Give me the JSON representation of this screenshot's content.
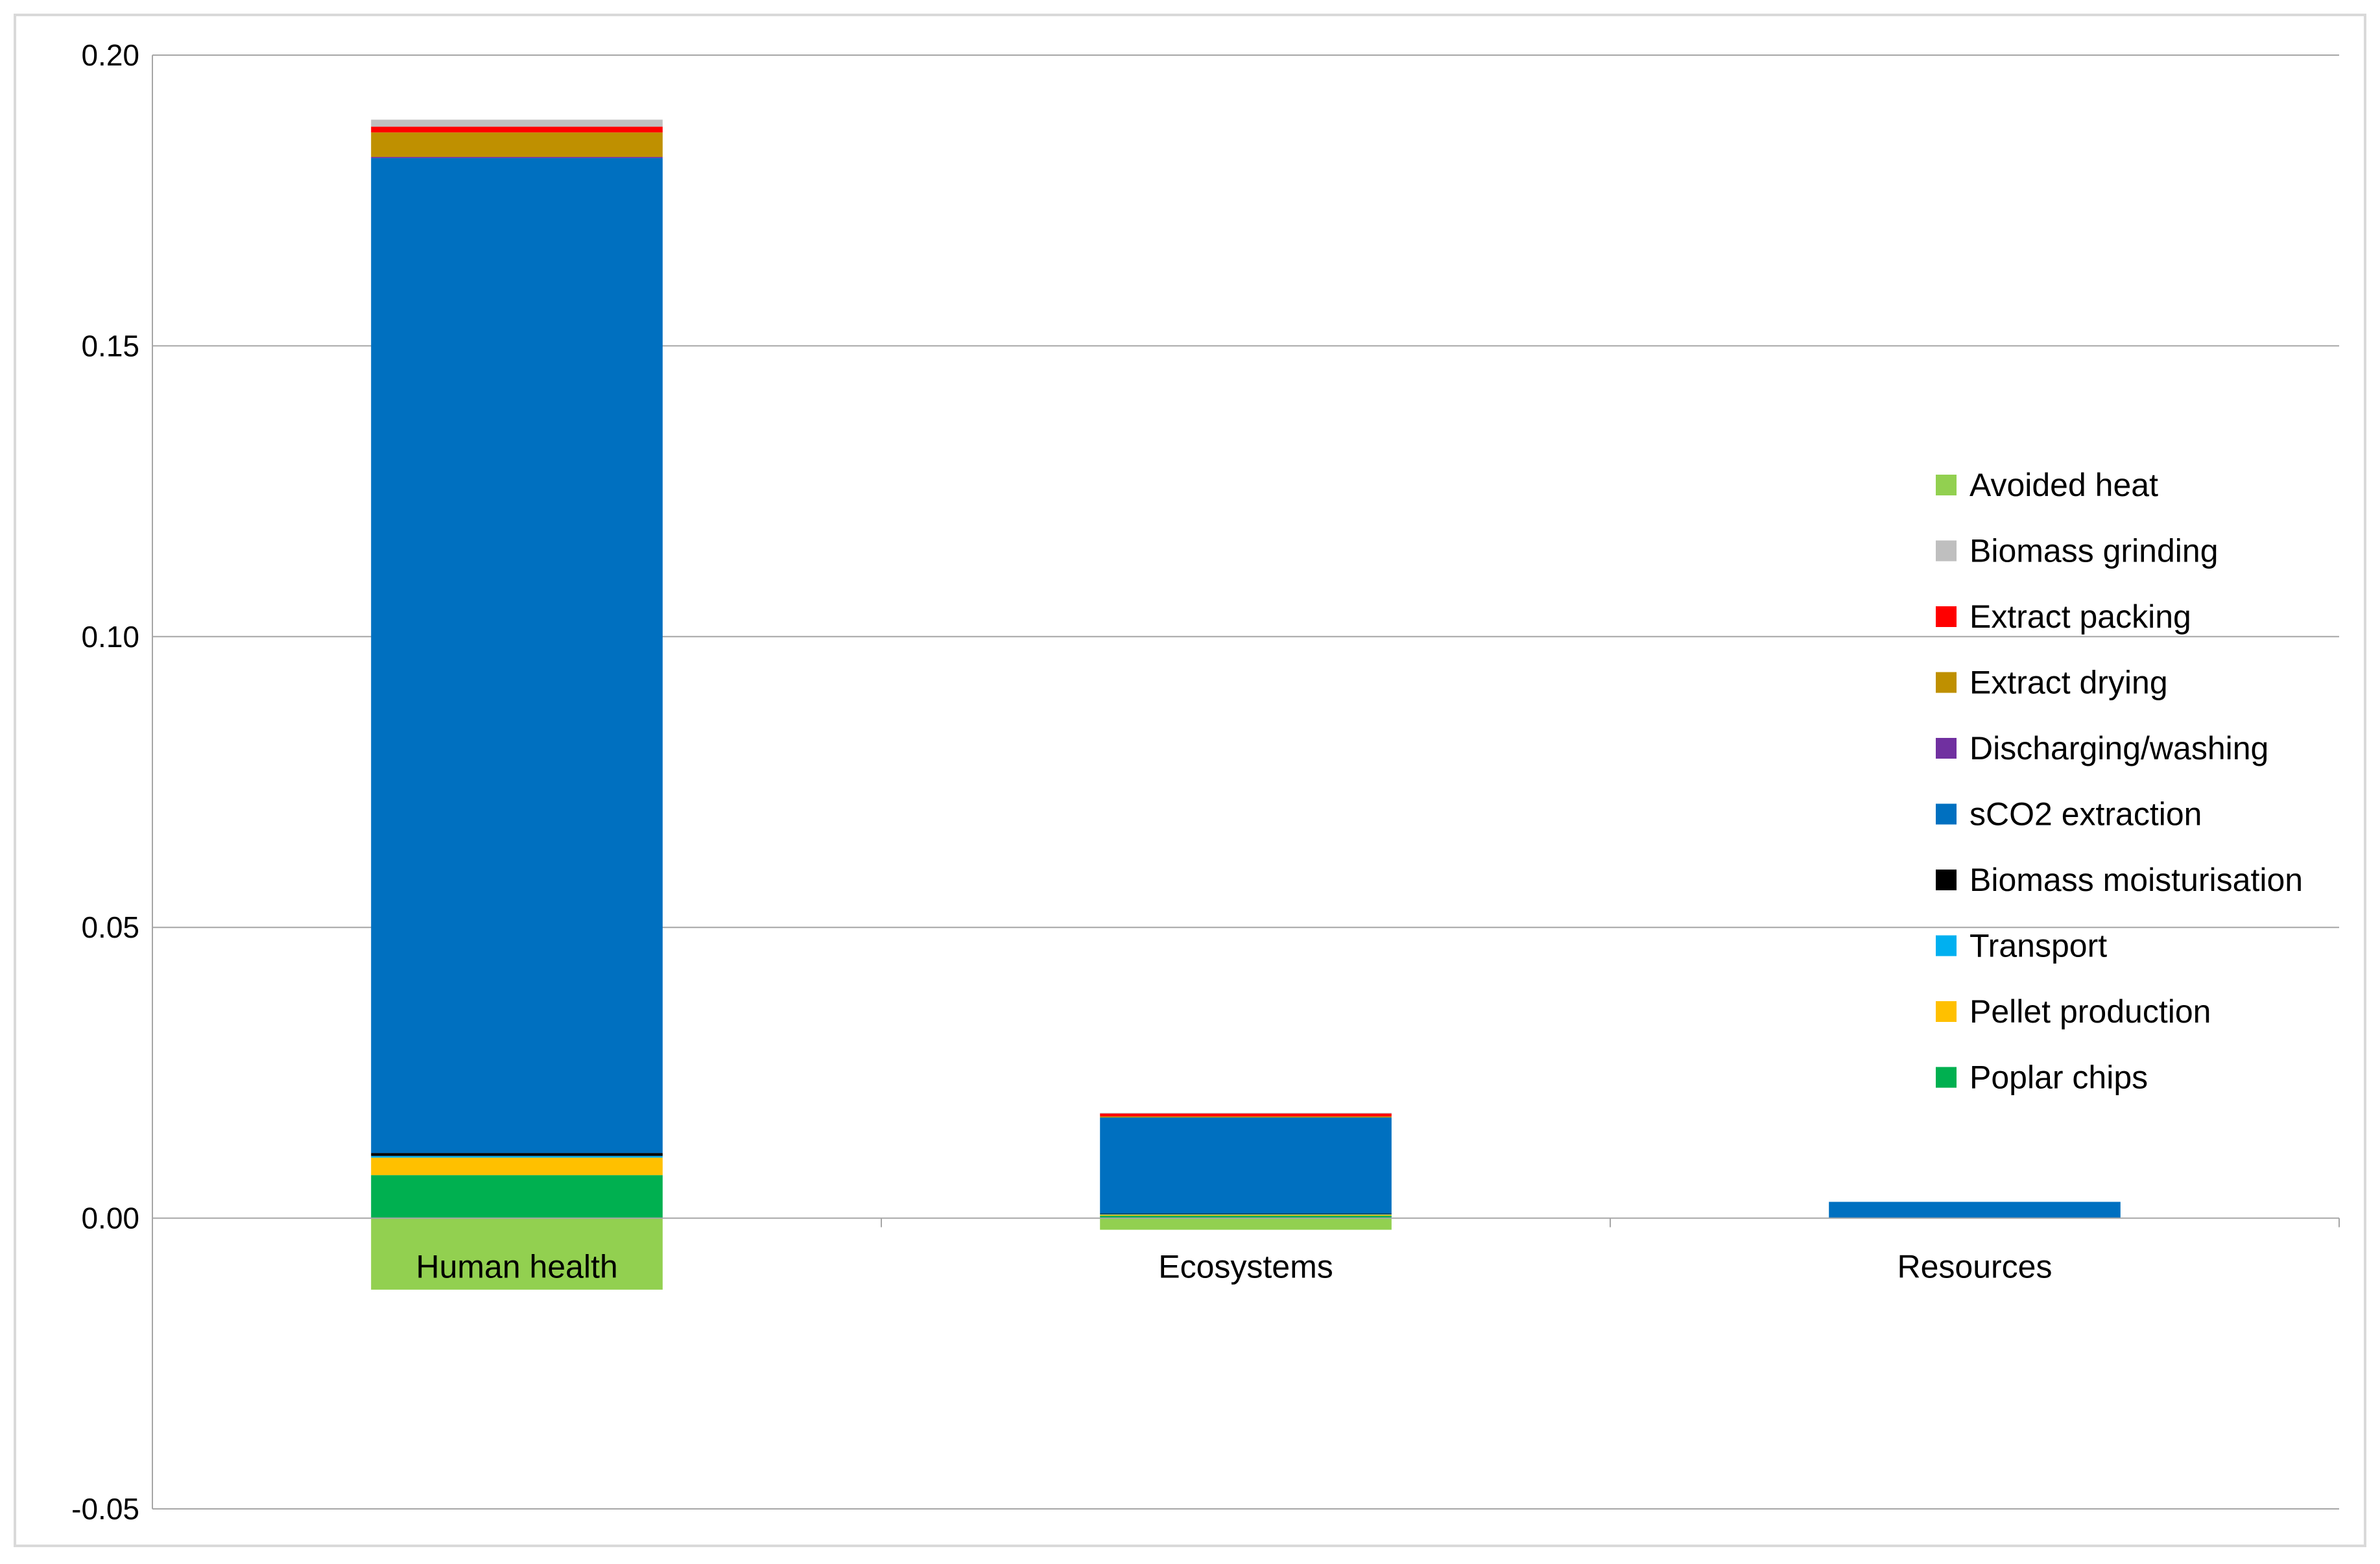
{
  "chart_data": {
    "type": "bar",
    "stacked": true,
    "categories": [
      "Human health",
      "Ecosystems",
      "Resources"
    ],
    "ylim": [
      -0.05,
      0.2
    ],
    "yticks": [
      "0.20",
      "0.15",
      "0.10",
      "0.05",
      "0.00",
      "-0.05"
    ],
    "ytick_values": [
      0.2,
      0.15,
      0.1,
      0.05,
      0.0,
      -0.05
    ],
    "grid": true,
    "legend_position": "right",
    "series": [
      {
        "name": "Poplar chips",
        "color": "#00B050",
        "values": [
          0.0074,
          0.0004,
          0.0
        ]
      },
      {
        "name": "Pellet production",
        "color": "#FFC000",
        "values": [
          0.003,
          0.0002,
          0.0
        ]
      },
      {
        "name": "Transport",
        "color": "#00B0F0",
        "values": [
          0.0003,
          0.0001,
          0.0
        ]
      },
      {
        "name": "Biomass moisturisation",
        "color": "#000000",
        "values": [
          0.0005,
          0.0001,
          0.0
        ]
      },
      {
        "name": "sCO2 extraction",
        "color": "#0070C0",
        "values": [
          0.1711,
          0.0165,
          0.0028
        ]
      },
      {
        "name": "Discharging/washing",
        "color": "#7030A0",
        "values": [
          0.0002,
          0.0,
          0.0
        ]
      },
      {
        "name": "Extract drying",
        "color": "#BF9000",
        "values": [
          0.0042,
          0.0002,
          0.0
        ]
      },
      {
        "name": "Extract packing",
        "color": "#FF0000",
        "values": [
          0.001,
          0.0005,
          0.0
        ]
      },
      {
        "name": "Biomass grinding",
        "color": "#BFBFBF",
        "values": [
          0.0012,
          0.0001,
          0.0
        ]
      },
      {
        "name": "Avoided heat",
        "color": "#92D050",
        "values": [
          -0.0123,
          -0.002,
          0.0
        ]
      }
    ]
  }
}
